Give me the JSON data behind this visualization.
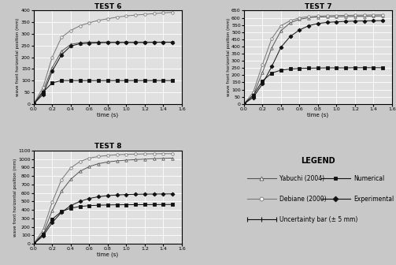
{
  "test6": {
    "title": "TEST 6",
    "ylim": [
      0,
      400
    ],
    "yticks": [
      0,
      50,
      100,
      150,
      200,
      250,
      300,
      350,
      400
    ],
    "ylabel": "wave front horizontal position (mm)",
    "xlabel": "time (s)",
    "yabuchi": {
      "t": [
        0,
        0.1,
        0.2,
        0.3,
        0.4,
        0.5,
        0.6,
        0.7,
        0.8,
        0.9,
        1.0,
        1.1,
        1.2,
        1.3,
        1.4,
        1.5
      ],
      "y": [
        0,
        55,
        155,
        225,
        255,
        262,
        265,
        265,
        265,
        265,
        265,
        265,
        265,
        265,
        265,
        265
      ]
    },
    "debiane": {
      "t": [
        0,
        0.1,
        0.2,
        0.3,
        0.4,
        0.5,
        0.6,
        0.7,
        0.8,
        0.9,
        1.0,
        1.1,
        1.2,
        1.3,
        1.4,
        1.5
      ],
      "y": [
        0,
        70,
        200,
        285,
        315,
        335,
        348,
        358,
        365,
        372,
        377,
        381,
        384,
        387,
        390,
        393
      ]
    },
    "numerical": {
      "t": [
        0,
        0.1,
        0.2,
        0.3,
        0.4,
        0.5,
        0.6,
        0.7,
        0.8,
        0.9,
        1.0,
        1.1,
        1.2,
        1.3,
        1.4,
        1.5
      ],
      "y": [
        0,
        50,
        90,
        100,
        100,
        100,
        100,
        100,
        100,
        100,
        100,
        100,
        100,
        100,
        100,
        100
      ]
    },
    "experimental": {
      "t": [
        0,
        0.1,
        0.2,
        0.3,
        0.4,
        0.5,
        0.6,
        0.7,
        0.8,
        0.9,
        1.0,
        1.1,
        1.2,
        1.3,
        1.4,
        1.5
      ],
      "y": [
        0,
        40,
        140,
        210,
        248,
        258,
        260,
        262,
        263,
        263,
        263,
        263,
        263,
        264,
        264,
        264
      ]
    },
    "exp_yerr": 5
  },
  "test7": {
    "title": "TEST 7",
    "ylim": [
      0,
      650
    ],
    "yticks": [
      0,
      50,
      100,
      150,
      200,
      250,
      300,
      350,
      400,
      450,
      500,
      550,
      600,
      650
    ],
    "ylabel": "wave front horizontal position (mm)",
    "xlabel": "time (s)",
    "yabuchi": {
      "t": [
        0,
        0.1,
        0.2,
        0.3,
        0.4,
        0.5,
        0.6,
        0.7,
        0.8,
        0.9,
        1.0,
        1.1,
        1.2,
        1.3,
        1.4,
        1.5
      ],
      "y": [
        0,
        60,
        220,
        390,
        510,
        565,
        590,
        600,
        605,
        607,
        608,
        609,
        610,
        611,
        612,
        613
      ]
    },
    "debiane": {
      "t": [
        0,
        0.1,
        0.2,
        0.3,
        0.4,
        0.5,
        0.6,
        0.7,
        0.8,
        0.9,
        1.0,
        1.1,
        1.2,
        1.3,
        1.4,
        1.5
      ],
      "y": [
        0,
        80,
        275,
        455,
        545,
        580,
        600,
        608,
        612,
        614,
        616,
        617,
        618,
        619,
        620,
        621
      ]
    },
    "numerical": {
      "t": [
        0,
        0.1,
        0.2,
        0.3,
        0.4,
        0.5,
        0.6,
        0.7,
        0.8,
        0.9,
        1.0,
        1.1,
        1.2,
        1.3,
        1.4,
        1.5
      ],
      "y": [
        0,
        60,
        160,
        215,
        235,
        243,
        247,
        249,
        250,
        251,
        251,
        251,
        252,
        252,
        252,
        252
      ]
    },
    "experimental": {
      "t": [
        0,
        0.1,
        0.2,
        0.3,
        0.4,
        0.5,
        0.6,
        0.7,
        0.8,
        0.9,
        1.0,
        1.1,
        1.2,
        1.3,
        1.4,
        1.5
      ],
      "y": [
        0,
        45,
        140,
        260,
        395,
        470,
        515,
        545,
        560,
        568,
        572,
        575,
        577,
        578,
        579,
        580
      ]
    },
    "exp_yerr": 5
  },
  "test8": {
    "title": "TEST 8",
    "ylim": [
      0,
      1100
    ],
    "yticks": [
      0,
      100,
      200,
      300,
      400,
      500,
      600,
      700,
      800,
      900,
      1000,
      1100
    ],
    "ylabel": "wave front horizontal position (mm)",
    "xlabel": "time (s)",
    "yabuchi": {
      "t": [
        0,
        0.1,
        0.2,
        0.3,
        0.4,
        0.5,
        0.6,
        0.7,
        0.8,
        0.9,
        1.0,
        1.1,
        1.2,
        1.3,
        1.4,
        1.5
      ],
      "y": [
        0,
        120,
        390,
        620,
        760,
        855,
        910,
        945,
        965,
        978,
        987,
        993,
        998,
        1003,
        1007,
        1010
      ]
    },
    "debiane": {
      "t": [
        0,
        0.1,
        0.2,
        0.3,
        0.4,
        0.5,
        0.6,
        0.7,
        0.8,
        0.9,
        1.0,
        1.1,
        1.2,
        1.3,
        1.4,
        1.5
      ],
      "y": [
        0,
        160,
        490,
        755,
        895,
        970,
        1010,
        1030,
        1042,
        1050,
        1055,
        1058,
        1060,
        1062,
        1063,
        1063
      ]
    },
    "numerical": {
      "t": [
        0,
        0.1,
        0.2,
        0.3,
        0.4,
        0.5,
        0.6,
        0.7,
        0.8,
        0.9,
        1.0,
        1.1,
        1.2,
        1.3,
        1.4,
        1.5
      ],
      "y": [
        0,
        110,
        290,
        380,
        420,
        440,
        450,
        455,
        458,
        460,
        461,
        462,
        462,
        463,
        463,
        464
      ]
    },
    "experimental": {
      "t": [
        0,
        0.1,
        0.2,
        0.3,
        0.4,
        0.5,
        0.6,
        0.7,
        0.8,
        0.9,
        1.0,
        1.1,
        1.2,
        1.3,
        1.4,
        1.5
      ],
      "y": [
        0,
        90,
        250,
        370,
        450,
        500,
        535,
        555,
        568,
        576,
        581,
        584,
        586,
        587,
        588,
        589
      ]
    },
    "exp_yerr": 5
  },
  "bg_color": "#e0e0e0",
  "fig_bg": "#c8c8c8"
}
